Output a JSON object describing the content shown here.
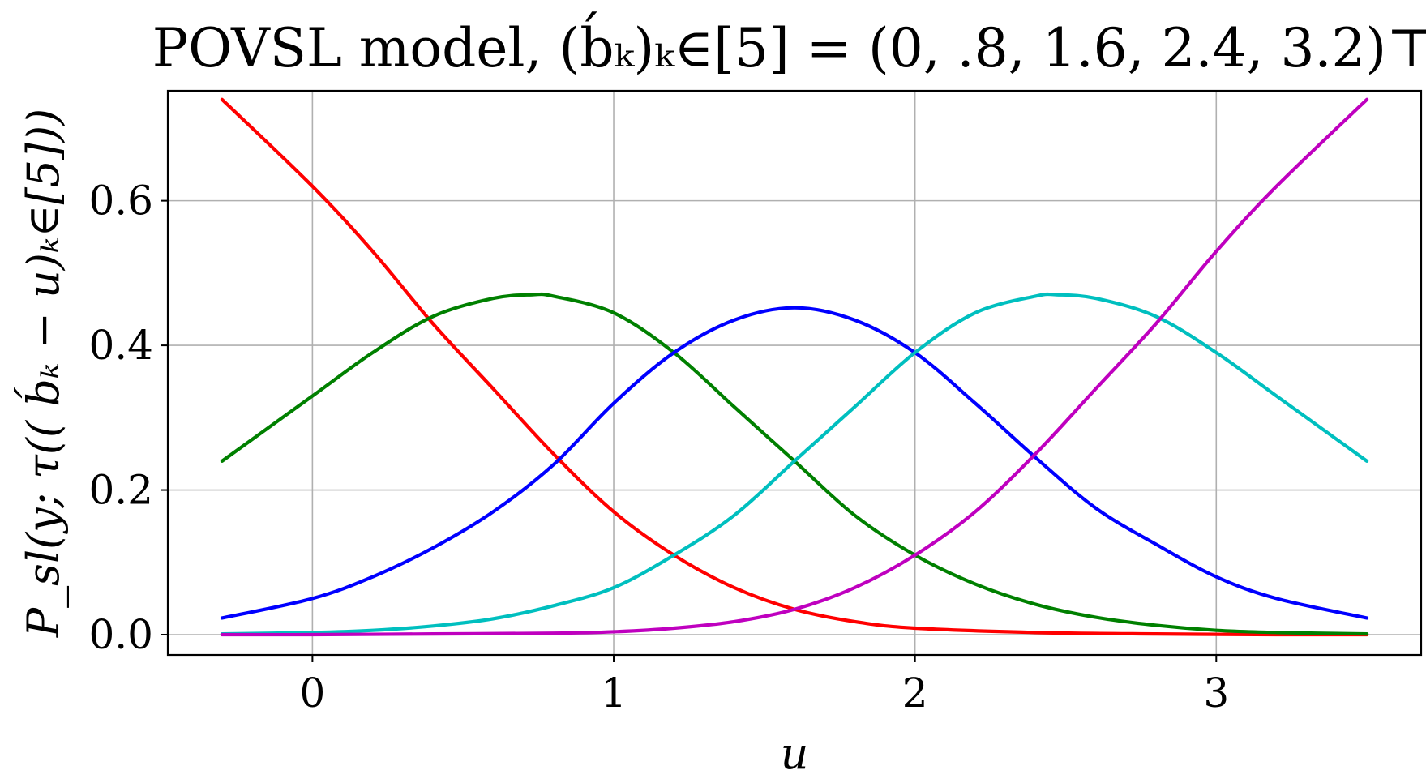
{
  "chart_data": {
    "type": "line",
    "title": "POVSL model, (b́ₖ)ₖ∈[5] = (0, .8, 1.6, 2.4, 3.2)⊤",
    "xlabel": "u",
    "ylabel": "P_sl(y; τ(( b́ₖ − u)ₖ∈[5]))",
    "xlim": [
      -0.48,
      3.68
    ],
    "ylim": [
      -0.028,
      0.752
    ],
    "grid": true,
    "x_ticks": [
      0,
      1,
      2,
      3
    ],
    "x_tick_labels": [
      "0",
      "1",
      "2",
      "3"
    ],
    "y_ticks": [
      0.0,
      0.2,
      0.4,
      0.6
    ],
    "y_tick_labels": [
      "0.0",
      "0.2",
      "0.4",
      "0.6"
    ],
    "series": [
      {
        "color": "#ff0000",
        "x": [
          -0.3,
          0.0,
          0.2,
          0.4,
          0.6,
          0.8,
          1.0,
          1.2,
          1.4,
          1.6,
          1.8,
          2.0,
          2.4,
          2.8,
          3.2,
          3.5
        ],
        "y": [
          0.74,
          0.62,
          0.53,
          0.43,
          0.34,
          0.25,
          0.17,
          0.11,
          0.065,
          0.035,
          0.018,
          0.009,
          0.003,
          0.001,
          0.0,
          0.0
        ]
      },
      {
        "color": "#008000",
        "x": [
          -0.3,
          0.0,
          0.2,
          0.4,
          0.6,
          0.73,
          0.8,
          1.0,
          1.2,
          1.4,
          1.6,
          1.8,
          2.0,
          2.2,
          2.4,
          2.6,
          2.8,
          3.0,
          3.2,
          3.5
        ],
        "y": [
          0.24,
          0.33,
          0.39,
          0.44,
          0.465,
          0.47,
          0.468,
          0.445,
          0.39,
          0.315,
          0.24,
          0.165,
          0.11,
          0.07,
          0.042,
          0.024,
          0.013,
          0.006,
          0.003,
          0.001
        ]
      },
      {
        "color": "#0000ff",
        "x": [
          -0.3,
          0.0,
          0.2,
          0.4,
          0.6,
          0.8,
          1.0,
          1.2,
          1.4,
          1.6,
          1.8,
          2.0,
          2.2,
          2.4,
          2.6,
          2.8,
          3.0,
          3.2,
          3.5
        ],
        "y": [
          0.023,
          0.05,
          0.08,
          0.12,
          0.17,
          0.235,
          0.32,
          0.39,
          0.435,
          0.452,
          0.435,
          0.39,
          0.32,
          0.245,
          0.175,
          0.125,
          0.08,
          0.05,
          0.023
        ]
      },
      {
        "color": "#00bfbf",
        "x": [
          -0.3,
          0.0,
          0.2,
          0.4,
          0.6,
          0.8,
          1.0,
          1.2,
          1.4,
          1.6,
          1.8,
          2.0,
          2.2,
          2.4,
          2.47,
          2.6,
          2.8,
          3.0,
          3.2,
          3.5
        ],
        "y": [
          0.001,
          0.003,
          0.006,
          0.012,
          0.022,
          0.04,
          0.065,
          0.11,
          0.165,
          0.24,
          0.315,
          0.39,
          0.445,
          0.468,
          0.47,
          0.465,
          0.44,
          0.39,
          0.33,
          0.24
        ]
      },
      {
        "color": "#bf00bf",
        "x": [
          -0.3,
          0.0,
          0.4,
          0.8,
          1.0,
          1.2,
          1.4,
          1.6,
          1.8,
          2.0,
          2.2,
          2.4,
          2.6,
          2.8,
          3.0,
          3.2,
          3.5
        ],
        "y": [
          0.0,
          0.0,
          0.001,
          0.002,
          0.004,
          0.009,
          0.018,
          0.035,
          0.065,
          0.11,
          0.17,
          0.25,
          0.34,
          0.43,
          0.53,
          0.62,
          0.74
        ]
      }
    ]
  }
}
